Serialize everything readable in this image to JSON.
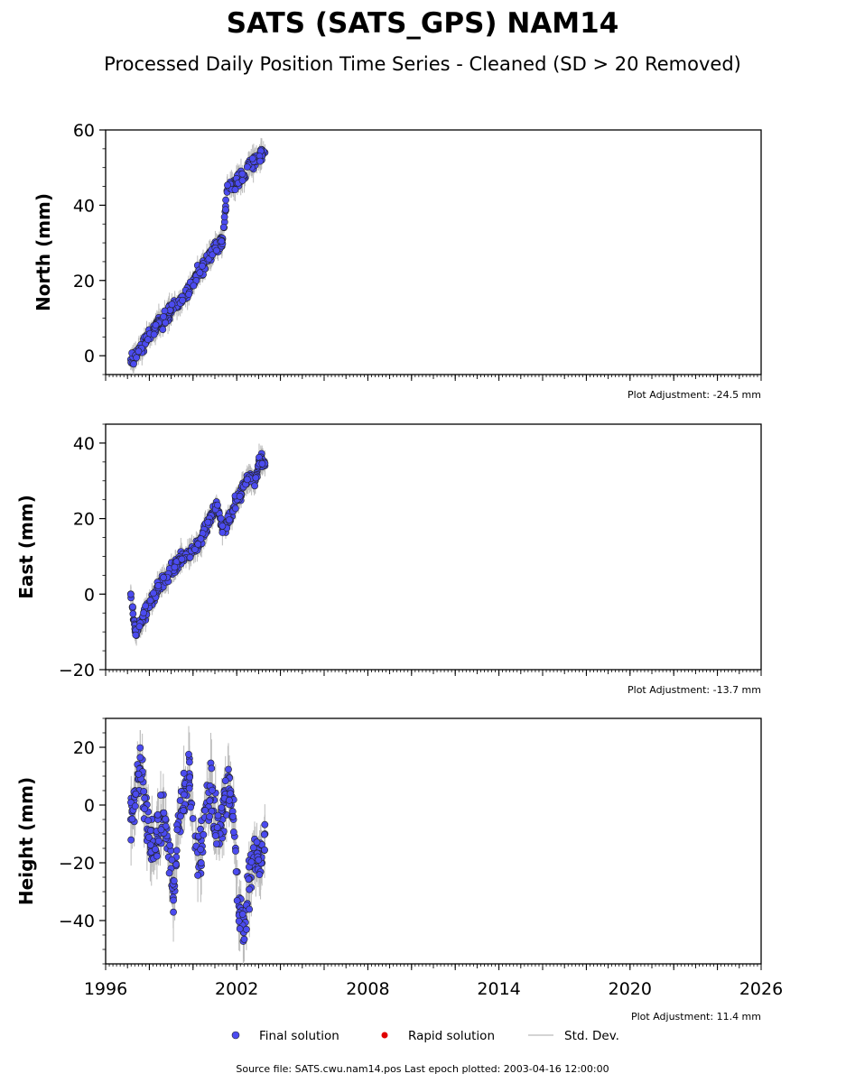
{
  "title": "SATS (SATS_GPS) NAM14",
  "subtitle": "Processed Daily Position Time Series - Cleaned (SD > 20 Removed)",
  "legend": {
    "final": "Final solution",
    "rapid": "Rapid solution",
    "std": "Std. Dev."
  },
  "footer": "Source file: SATS.cwu.nam14.pos  Last epoch plotted: 2003-04-16 12:00:00",
  "colors": {
    "final": "#4b4bf0",
    "rapid": "#e00000",
    "std": "#bbbbbb",
    "edge": "#222222"
  },
  "chart_data": [
    {
      "type": "scatter",
      "ylabel": "North (mm)",
      "adjustment": "Plot Adjustment: -24.5 mm",
      "xlim": [
        1996,
        2026
      ],
      "ylim": [
        -5,
        60
      ],
      "yticks": [
        0,
        20,
        40,
        60
      ],
      "ytick_labels": [
        "0",
        "20",
        "40",
        "60"
      ],
      "series": [
        {
          "name": "Final solution",
          "x": [
            1997.15,
            1997.35,
            1997.6,
            1997.85,
            1998.1,
            1998.35,
            1998.6,
            1998.85,
            1999.1,
            1999.35,
            1999.6,
            1999.85,
            2000.1,
            2000.35,
            2000.6,
            2000.85,
            2001.1,
            2001.35,
            2001.6,
            2001.85,
            2002.1,
            2002.35,
            2002.6,
            2002.85,
            2003.1,
            2003.29
          ],
          "y": [
            -1,
            0,
            2,
            4,
            6,
            8,
            9,
            11,
            13,
            14,
            16,
            18,
            21,
            23,
            25,
            27,
            29,
            31,
            45,
            46,
            47,
            48,
            51,
            52,
            53,
            54
          ]
        }
      ]
    },
    {
      "type": "scatter",
      "ylabel": "East (mm)",
      "adjustment": "Plot Adjustment: -13.7 mm",
      "xlim": [
        1996,
        2026
      ],
      "ylim": [
        -20,
        45
      ],
      "yticks": [
        -20,
        0,
        20,
        40
      ],
      "ytick_labels": [
        "−20",
        "0",
        "20",
        "40"
      ],
      "series": [
        {
          "name": "Final solution",
          "x": [
            1997.15,
            1997.35,
            1997.6,
            1997.85,
            1998.1,
            1998.35,
            1998.6,
            1998.85,
            1999.1,
            1999.35,
            1999.6,
            1999.85,
            2000.1,
            2000.35,
            2000.6,
            2000.85,
            2001.1,
            2001.35,
            2001.6,
            2001.85,
            2002.1,
            2002.35,
            2002.6,
            2002.85,
            2003.1,
            2003.29
          ],
          "y": [
            0,
            -10,
            -8,
            -5,
            -2,
            1,
            3,
            5,
            7,
            9,
            10,
            11,
            12,
            14,
            18,
            21,
            23,
            17,
            19,
            23,
            26,
            29,
            31,
            30,
            36,
            34
          ]
        }
      ]
    },
    {
      "type": "scatter",
      "ylabel": "Height (mm)",
      "adjustment": "Plot Adjustment: 11.4 mm",
      "xlim": [
        1996,
        2026
      ],
      "ylim": [
        -55,
        30
      ],
      "yticks": [
        -40,
        -20,
        0,
        20
      ],
      "ytick_labels": [
        "−40",
        "−20",
        "0",
        "20"
      ],
      "xticks": [
        1996,
        2002,
        2008,
        2014,
        2020,
        2026
      ],
      "xtick_labels": [
        "1996",
        "2002",
        "2008",
        "2014",
        "2020",
        "2026"
      ],
      "series": [
        {
          "name": "Final solution",
          "x": [
            1997.15,
            1997.35,
            1997.6,
            1997.85,
            1998.1,
            1998.35,
            1998.6,
            1998.85,
            1999.1,
            1999.35,
            1999.6,
            1999.85,
            2000.1,
            2000.35,
            2000.6,
            2000.85,
            2001.1,
            2001.35,
            2001.6,
            2001.85,
            2002.1,
            2002.35,
            2002.6,
            2002.85,
            2003.1,
            2003.29
          ],
          "y": [
            -5,
            5,
            12,
            0,
            -15,
            -10,
            -5,
            -12,
            -30,
            -8,
            5,
            10,
            -15,
            -20,
            0,
            5,
            -10,
            -5,
            10,
            -5,
            -35,
            -40,
            -25,
            -15,
            -20,
            -10
          ]
        }
      ]
    }
  ]
}
